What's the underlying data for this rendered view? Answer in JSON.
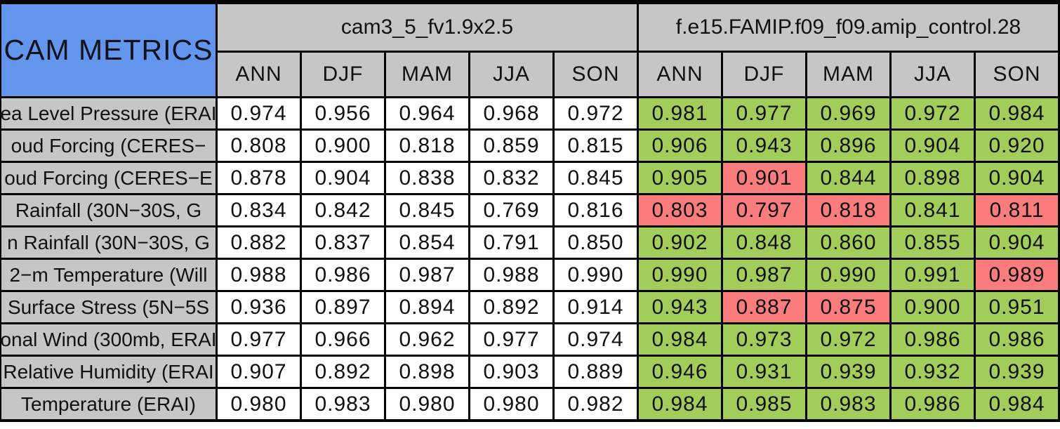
{
  "chart_data": {
    "type": "table",
    "title": "CAM METRICS",
    "model_groups": [
      {
        "name": "cam3_5_fv1.9x2.5",
        "seasons": [
          "ANN",
          "DJF",
          "MAM",
          "JJA",
          "SON"
        ]
      },
      {
        "name": "f.e15.FAMIP.f09_f09.amip_control.28",
        "seasons": [
          "ANN",
          "DJF",
          "MAM",
          "JJA",
          "SON"
        ]
      }
    ],
    "rows": [
      {
        "label": "ea Level Pressure (ERAI",
        "model1": [
          "0.974",
          "0.956",
          "0.964",
          "0.968",
          "0.972"
        ],
        "model2": [
          {
            "value": "0.981",
            "status": "better"
          },
          {
            "value": "0.977",
            "status": "better"
          },
          {
            "value": "0.969",
            "status": "better"
          },
          {
            "value": "0.972",
            "status": "better"
          },
          {
            "value": "0.984",
            "status": "better"
          }
        ]
      },
      {
        "label": "oud Forcing (CERES−",
        "model1": [
          "0.808",
          "0.900",
          "0.818",
          "0.859",
          "0.815"
        ],
        "model2": [
          {
            "value": "0.906",
            "status": "better"
          },
          {
            "value": "0.943",
            "status": "better"
          },
          {
            "value": "0.896",
            "status": "better"
          },
          {
            "value": "0.904",
            "status": "better"
          },
          {
            "value": "0.920",
            "status": "better"
          }
        ]
      },
      {
        "label": "oud Forcing (CERES−E",
        "model1": [
          "0.878",
          "0.904",
          "0.838",
          "0.832",
          "0.845"
        ],
        "model2": [
          {
            "value": "0.905",
            "status": "better"
          },
          {
            "value": "0.901",
            "status": "worse"
          },
          {
            "value": "0.844",
            "status": "better"
          },
          {
            "value": "0.898",
            "status": "better"
          },
          {
            "value": "0.904",
            "status": "better"
          }
        ]
      },
      {
        "label": "Rainfall (30N−30S, G",
        "model1": [
          "0.834",
          "0.842",
          "0.845",
          "0.769",
          "0.816"
        ],
        "model2": [
          {
            "value": "0.803",
            "status": "worse"
          },
          {
            "value": "0.797",
            "status": "worse"
          },
          {
            "value": "0.818",
            "status": "worse"
          },
          {
            "value": "0.841",
            "status": "better"
          },
          {
            "value": "0.811",
            "status": "worse"
          }
        ]
      },
      {
        "label": "n Rainfall (30N−30S, G",
        "model1": [
          "0.882",
          "0.837",
          "0.854",
          "0.791",
          "0.850"
        ],
        "model2": [
          {
            "value": "0.902",
            "status": "better"
          },
          {
            "value": "0.848",
            "status": "better"
          },
          {
            "value": "0.860",
            "status": "better"
          },
          {
            "value": "0.855",
            "status": "better"
          },
          {
            "value": "0.904",
            "status": "better"
          }
        ]
      },
      {
        "label": "2−m Temperature (Will",
        "model1": [
          "0.988",
          "0.986",
          "0.987",
          "0.988",
          "0.990"
        ],
        "model2": [
          {
            "value": "0.990",
            "status": "better"
          },
          {
            "value": "0.987",
            "status": "better"
          },
          {
            "value": "0.990",
            "status": "better"
          },
          {
            "value": "0.991",
            "status": "better"
          },
          {
            "value": "0.989",
            "status": "worse"
          }
        ]
      },
      {
        "label": "Surface Stress (5N−5S",
        "model1": [
          "0.936",
          "0.897",
          "0.894",
          "0.892",
          "0.914"
        ],
        "model2": [
          {
            "value": "0.943",
            "status": "better"
          },
          {
            "value": "0.887",
            "status": "worse"
          },
          {
            "value": "0.875",
            "status": "worse"
          },
          {
            "value": "0.900",
            "status": "better"
          },
          {
            "value": "0.951",
            "status": "better"
          }
        ]
      },
      {
        "label": "onal Wind (300mb, ERAI",
        "model1": [
          "0.977",
          "0.966",
          "0.962",
          "0.977",
          "0.974"
        ],
        "model2": [
          {
            "value": "0.984",
            "status": "better"
          },
          {
            "value": "0.973",
            "status": "better"
          },
          {
            "value": "0.972",
            "status": "better"
          },
          {
            "value": "0.986",
            "status": "better"
          },
          {
            "value": "0.986",
            "status": "better"
          }
        ]
      },
      {
        "label": "Relative Humidity (ERAI",
        "model1": [
          "0.907",
          "0.892",
          "0.898",
          "0.903",
          "0.889"
        ],
        "model2": [
          {
            "value": "0.946",
            "status": "better"
          },
          {
            "value": "0.931",
            "status": "better"
          },
          {
            "value": "0.939",
            "status": "better"
          },
          {
            "value": "0.932",
            "status": "better"
          },
          {
            "value": "0.939",
            "status": "better"
          }
        ]
      },
      {
        "label": "Temperature (ERAI)",
        "model1": [
          "0.980",
          "0.983",
          "0.980",
          "0.980",
          "0.982"
        ],
        "model2": [
          {
            "value": "0.984",
            "status": "better"
          },
          {
            "value": "0.985",
            "status": "better"
          },
          {
            "value": "0.983",
            "status": "better"
          },
          {
            "value": "0.986",
            "status": "better"
          },
          {
            "value": "0.984",
            "status": "better"
          }
        ]
      }
    ]
  },
  "colors": {
    "corner_blue": "#6495EC",
    "header_gray": "#C6C6C6",
    "model1_cell_white": "#FFFFFF",
    "better_green": "#A2CD5A",
    "worse_red": "#FA7C7C",
    "grid_black": "#000000"
  }
}
